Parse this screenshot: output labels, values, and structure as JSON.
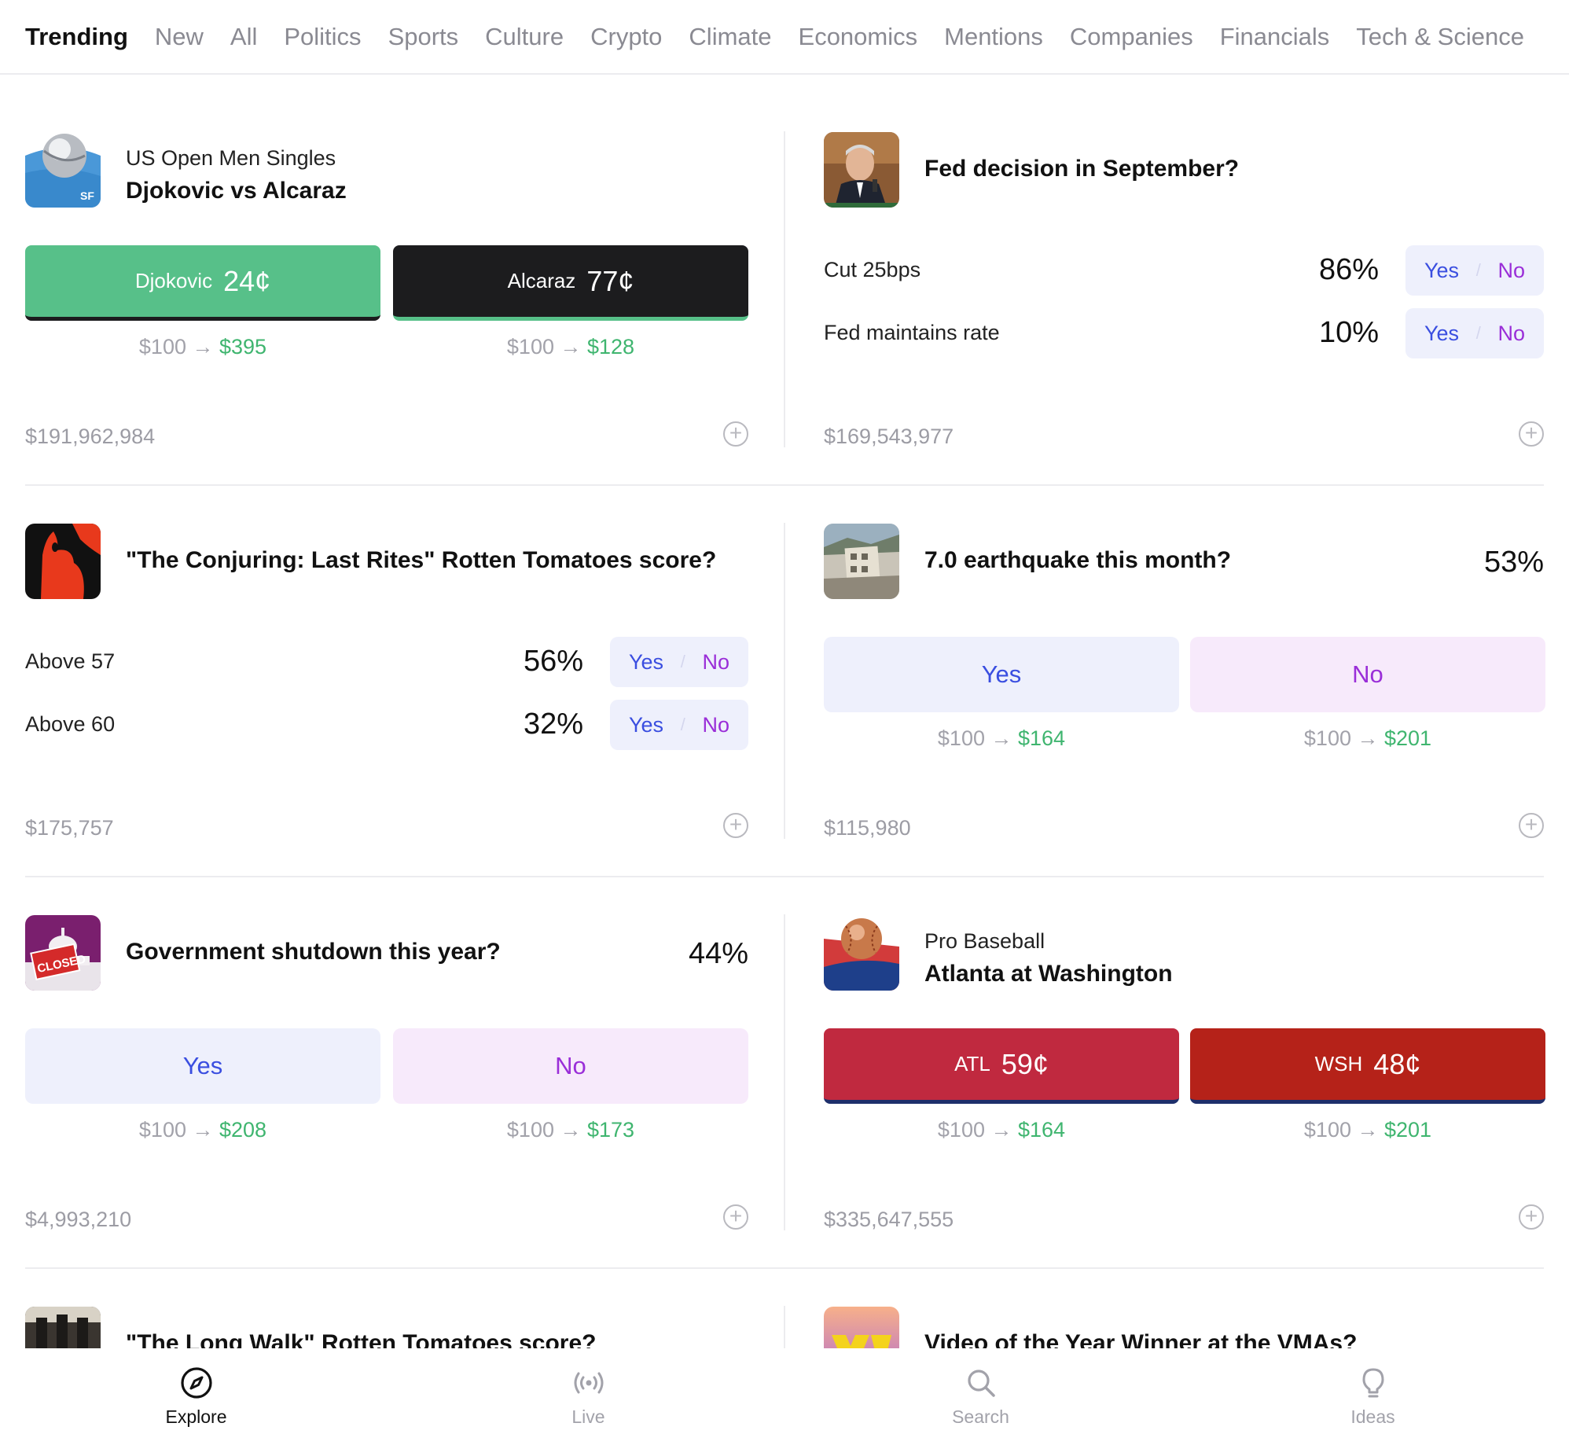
{
  "tabs": [
    "Trending",
    "New",
    "All",
    "Politics",
    "Sports",
    "Culture",
    "Crypto",
    "Climate",
    "Economics",
    "Mentions",
    "Companies",
    "Financials",
    "Tech & Science"
  ],
  "cards": {
    "usopen": {
      "subtitle": "US Open Men Singles",
      "title": "Djokovic vs Alcaraz",
      "icon_badge": "SF",
      "team1": {
        "name": "Djokovic",
        "price": "24¢",
        "stake": "$100 →",
        "payout": "$395"
      },
      "team2": {
        "name": "Alcaraz",
        "price": "77¢",
        "stake": "$100 →",
        "payout": "$128"
      },
      "volume": "$191,962,984"
    },
    "fed": {
      "title": "Fed decision in September?",
      "outcomes": [
        {
          "label": "Cut 25bps",
          "pct": "86%",
          "yes": "Yes",
          "sep": "/",
          "no": "No"
        },
        {
          "label": "Fed maintains rate",
          "pct": "10%",
          "yes": "Yes",
          "sep": "/",
          "no": "No"
        }
      ],
      "volume": "$169,543,977"
    },
    "conjuring": {
      "title": "\"The Conjuring: Last Rites\" Rotten Tomatoes score?",
      "outcomes": [
        {
          "label": "Above 57",
          "pct": "56%",
          "yes": "Yes",
          "sep": "/",
          "no": "No"
        },
        {
          "label": "Above 60",
          "pct": "32%",
          "yes": "Yes",
          "sep": "/",
          "no": "No"
        }
      ],
      "volume": "$175,757"
    },
    "quake": {
      "title": "7.0 earthquake this month?",
      "pct": "53%",
      "yes": "Yes",
      "no": "No",
      "yes_stake": "$100 →",
      "yes_payout": "$164",
      "no_stake": "$100 →",
      "no_payout": "$201",
      "volume": "$115,980"
    },
    "shutdown": {
      "title": "Government shutdown this year?",
      "pct": "44%",
      "yes": "Yes",
      "no": "No",
      "yes_stake": "$100 →",
      "yes_payout": "$208",
      "no_stake": "$100 →",
      "no_payout": "$173",
      "volume": "$4,993,210",
      "icon_text": "CLOSED"
    },
    "baseball": {
      "subtitle": "Pro Baseball",
      "title": "Atlanta at Washington",
      "team1": {
        "name": "ATL",
        "price": "59¢",
        "stake": "$100 →",
        "payout": "$164"
      },
      "team2": {
        "name": "WSH",
        "price": "48¢",
        "stake": "$100 →",
        "payout": "$201"
      },
      "volume": "$335,647,555"
    },
    "longwalk": {
      "title": "\"The Long Walk\" Rotten Tomatoes score?"
    },
    "vmas": {
      "title": "Video of the Year Winner at the VMAs?"
    }
  },
  "nav": [
    {
      "label": "Explore",
      "icon": "compass-icon"
    },
    {
      "label": "Live",
      "icon": "broadcast-icon"
    },
    {
      "label": "Search",
      "icon": "search-icon"
    },
    {
      "label": "Ideas",
      "icon": "lightbulb-icon"
    }
  ],
  "colors": {
    "green_btn": "#57c089",
    "black_btn": "#1c1c1e",
    "atl_red": "#c0293f",
    "wsh_red": "#b52219",
    "navy": "#1e2f6b",
    "yes_blue": "#3a4ee0",
    "no_purple": "#9a2ed8",
    "payout_green": "#3fb56f"
  }
}
